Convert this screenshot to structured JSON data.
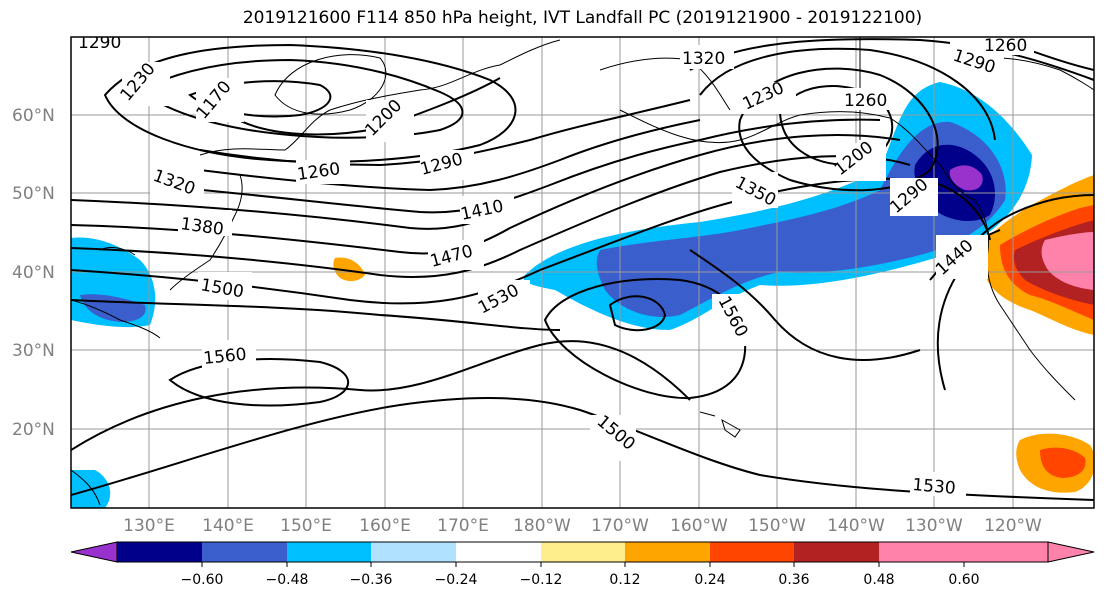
{
  "title": "2019121600 F114 850 hPa height, IVT Landfall PC (2019121900 - 2019122100)",
  "lat_labels": [
    "60°N",
    "50°N",
    "40°N",
    "30°N",
    "20°N"
  ],
  "lon_labels": [
    "130°E",
    "140°E",
    "150°E",
    "160°E",
    "170°E",
    "180°W",
    "170°W",
    "160°W",
    "150°W",
    "140°W",
    "130°W",
    "120°W"
  ],
  "contour_labels": [
    "1290",
    "1230",
    "1170",
    "1200",
    "1320",
    "1290",
    "1260",
    "1230",
    "1260",
    "1200",
    "1320",
    "1260",
    "1290",
    "1380",
    "1410",
    "1350",
    "1290",
    "1470",
    "1440",
    "1500",
    "1530",
    "1560",
    "1560",
    "1500",
    "1530"
  ],
  "colorbar": {
    "colors": [
      "#9932cc",
      "#00008b",
      "#3a5fcd",
      "#00bfff",
      "#b0e2ff",
      "#ffffff",
      "#ffec8b",
      "#ffa500",
      "#ff4500",
      "#b22222",
      "#ff82ab"
    ],
    "tick_labels": [
      "−0.60",
      "−0.48",
      "−0.36",
      "−0.24",
      "−0.12",
      "0.12",
      "0.24",
      "0.36",
      "0.48",
      "0.60"
    ]
  }
}
